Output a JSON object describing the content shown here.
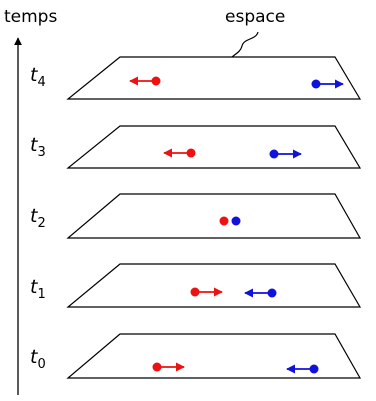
{
  "axis_label": "temps",
  "space_label": "espace",
  "time_symbol": "t",
  "colors": {
    "red": "#ee1111",
    "blue": "#1111dd",
    "line": "#000000"
  },
  "planes": [
    {
      "sub": "4"
    },
    {
      "sub": "3"
    },
    {
      "sub": "2"
    },
    {
      "sub": "1"
    },
    {
      "sub": "0"
    }
  ]
}
